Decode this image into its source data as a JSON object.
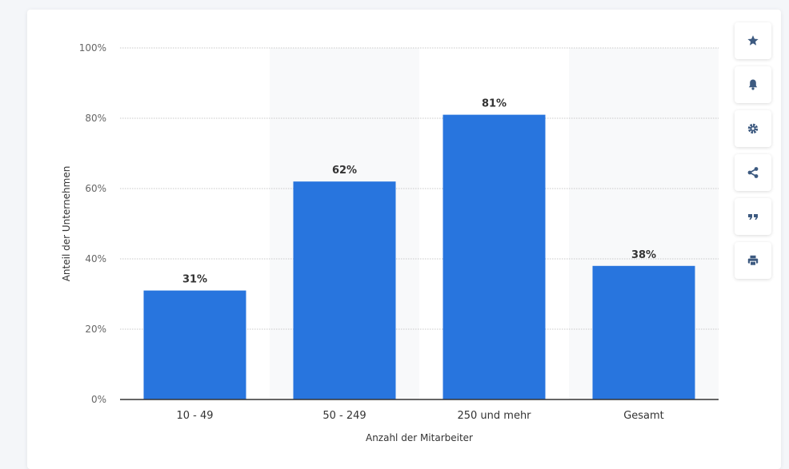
{
  "chart_data": {
    "type": "bar",
    "categories": [
      "10 - 49",
      "50 - 249",
      "250 und mehr",
      "Gesamt"
    ],
    "values": [
      31,
      62,
      81,
      38
    ],
    "value_labels": [
      "31%",
      "62%",
      "81%",
      "38%"
    ],
    "xlabel": "Anzahl der Mitarbeiter",
    "ylabel": "Anteil der Unternehmen",
    "ylim": [
      0,
      100
    ],
    "yticks": [
      0,
      20,
      40,
      60,
      80,
      100
    ],
    "ytick_labels": [
      "0%",
      "20%",
      "40%",
      "60%",
      "80%",
      "100%"
    ],
    "grid": true,
    "bar_color": "#2875de",
    "band_color": "#f8f9fa"
  },
  "toolbar": {
    "buttons": [
      {
        "name": "star-icon",
        "action": "favorite"
      },
      {
        "name": "bell-icon",
        "action": "notify"
      },
      {
        "name": "gear-icon",
        "action": "settings"
      },
      {
        "name": "share-icon",
        "action": "share"
      },
      {
        "name": "quote-icon",
        "action": "cite"
      },
      {
        "name": "print-icon",
        "action": "print"
      }
    ],
    "icon_color": "#3d5a80"
  }
}
